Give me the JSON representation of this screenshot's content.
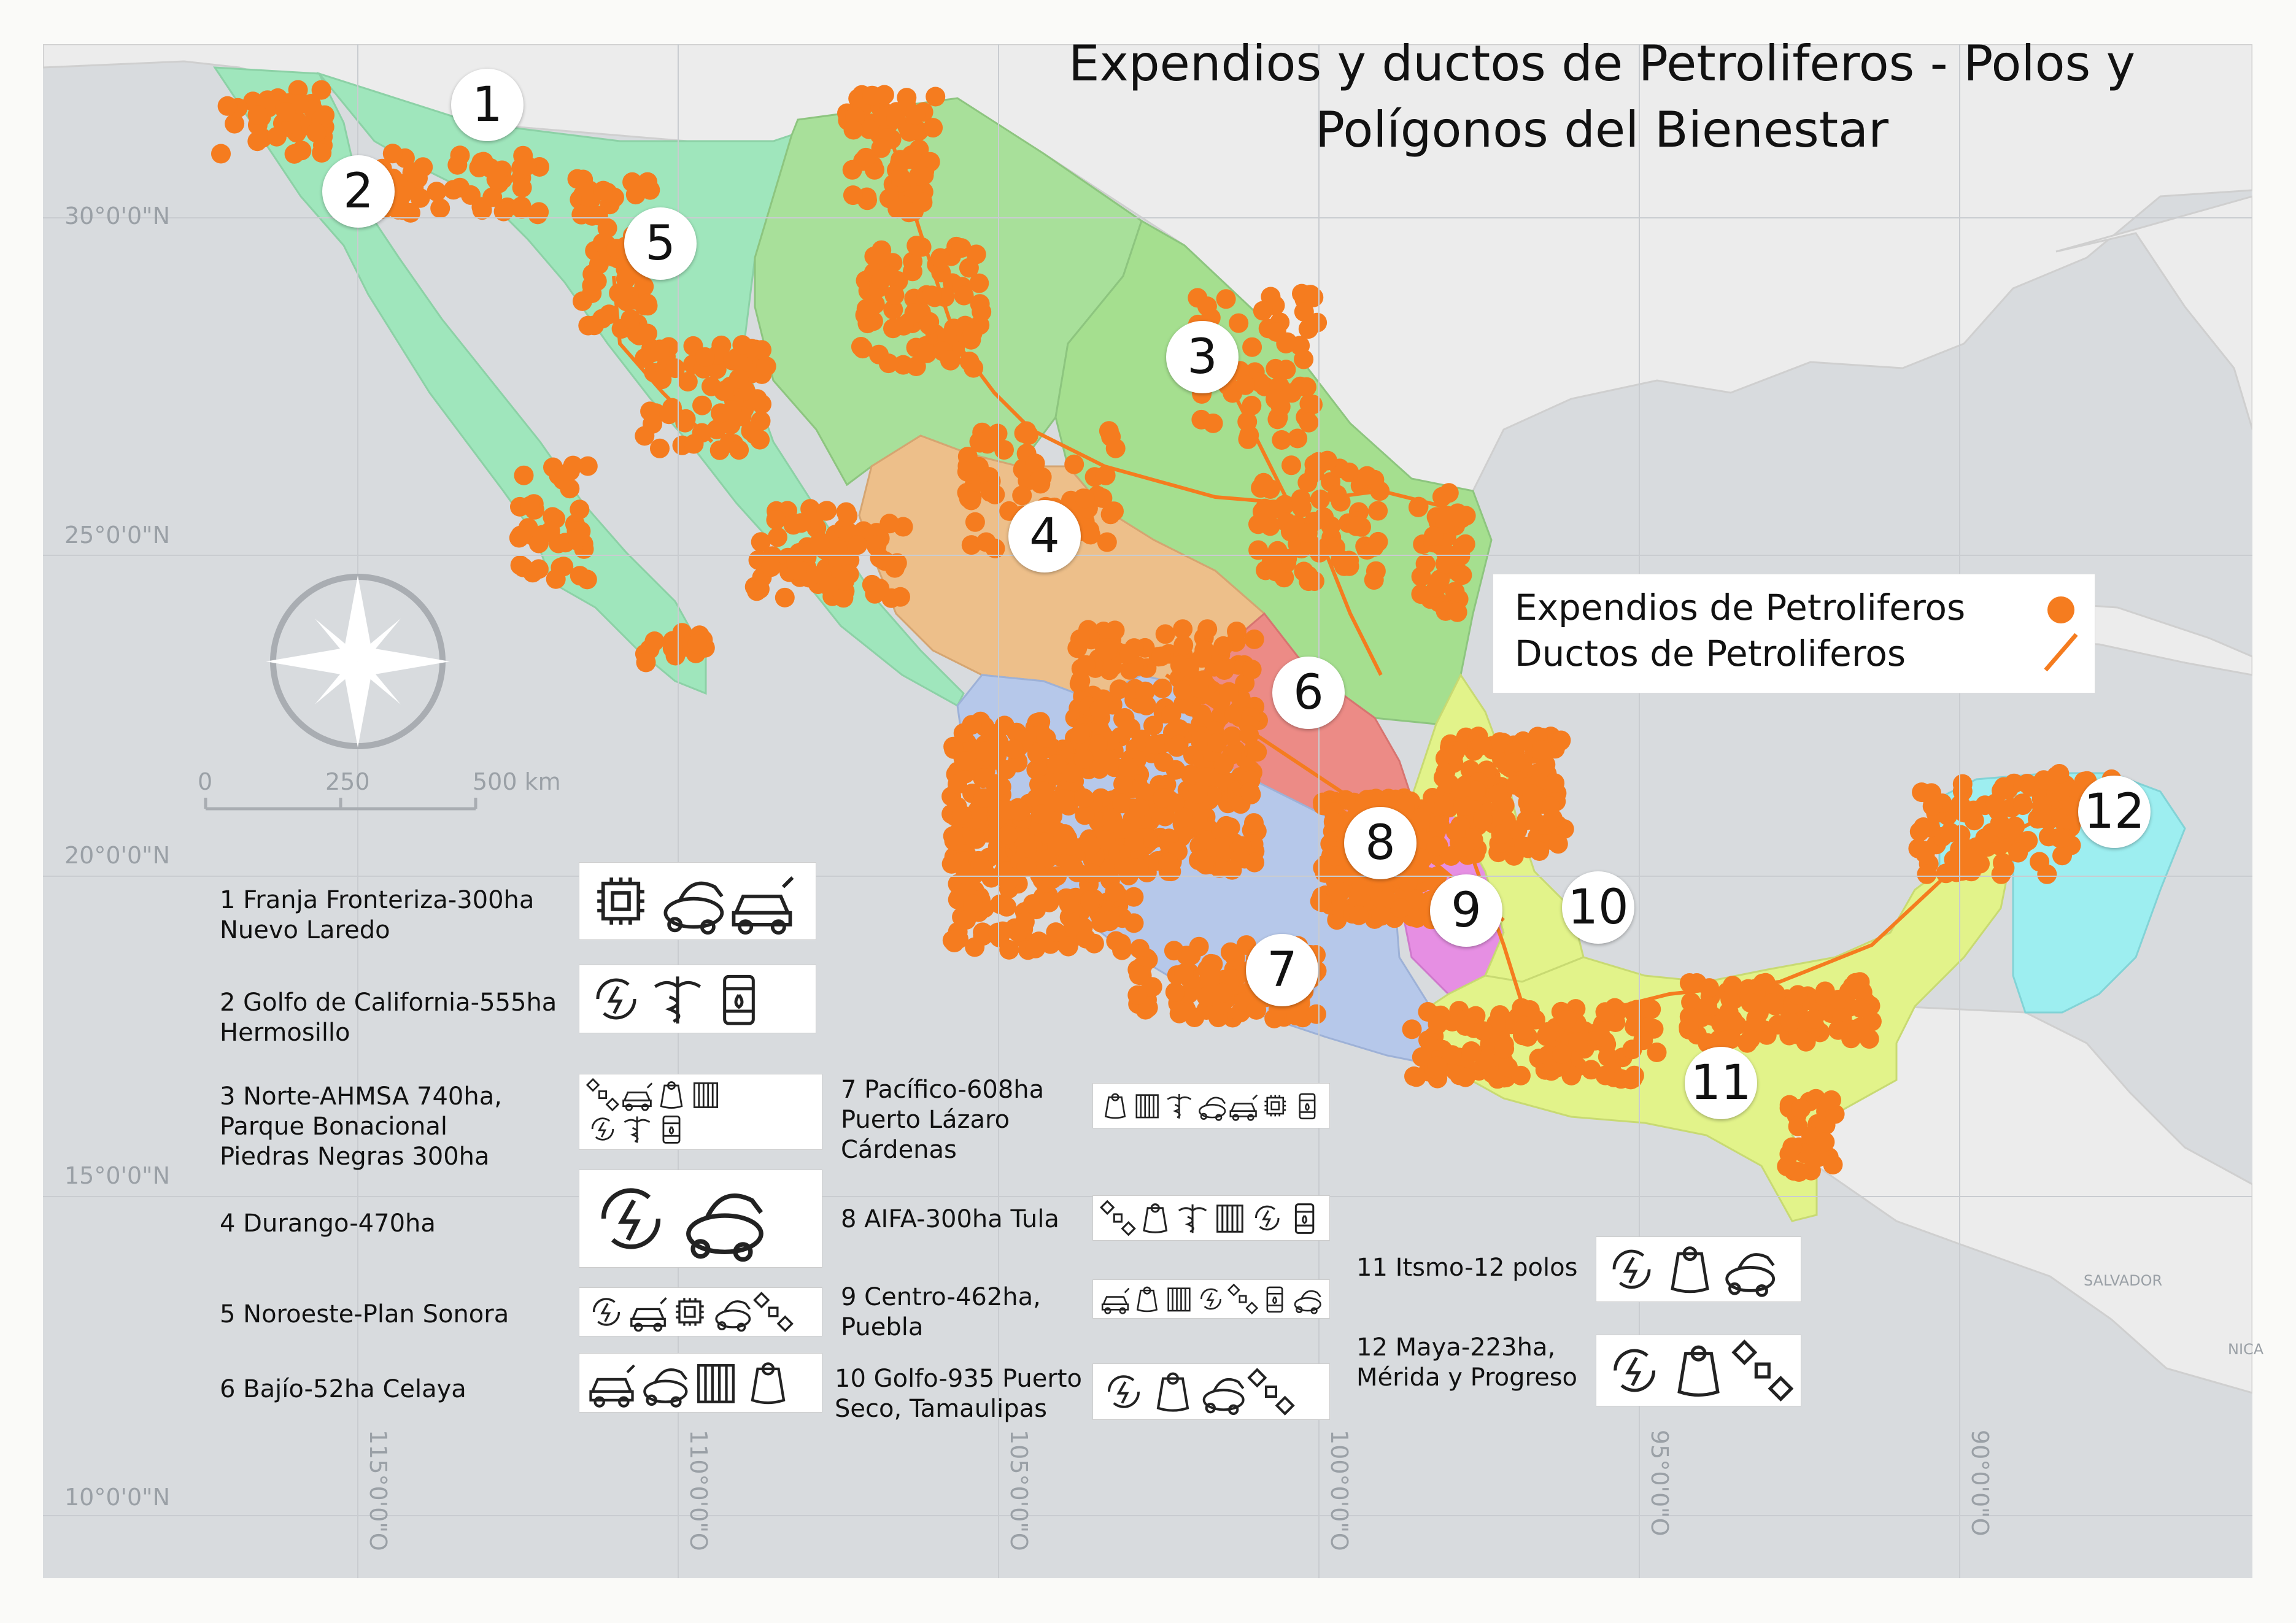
{
  "title": "Expendios y ductos de Petroliferos - Polos y Polígonos del Bienestar",
  "latitude_labels": [
    "30°0'0\"N",
    "25°0'0\"N",
    "20°0'0\"N",
    "15°0'0\"N",
    "10°0'0\"N"
  ],
  "longitude_labels": [
    "115°0'0\"O",
    "110°0'0\"O",
    "105°0'0\"O",
    "100°0'0\"O",
    "95°0'0\"O",
    "90°0'0\"O"
  ],
  "scale_bar": {
    "ticks": [
      "0",
      "250",
      "500 km"
    ]
  },
  "legend": {
    "items": [
      {
        "label": "Expendios de Petroliferos",
        "symbol": "circle",
        "color": "#f57c1f"
      },
      {
        "label": "Ductos de Petroliferos",
        "symbol": "line",
        "color": "#f57c1f"
      }
    ]
  },
  "region_numbers": [
    "1",
    "2",
    "3",
    "4",
    "5",
    "6",
    "7",
    "8",
    "9",
    "10",
    "11",
    "12"
  ],
  "region_colors": {
    "noroeste": "#9fe6bc",
    "norte": "#a8e09a",
    "noreste": "#a5df8f",
    "durango": "#edbf8a",
    "bajio": "#ec8b86",
    "pacifico": "#b6c8ea",
    "golfo": "#d2f07e",
    "maya": "#9deef0",
    "istmo": "#e2f38a",
    "centro_pink": "#e68fe3"
  },
  "polos": [
    {
      "text": "1 Franja Fronteriza-300ha\nNuevo Laredo",
      "icons": [
        "chip-icon",
        "vacuum-icon",
        "electric-car-icon"
      ]
    },
    {
      "text": "2 Golfo de California-555ha\nHermosillo",
      "icons": [
        "renewable-energy-icon",
        "caduceus-icon",
        "oil-barrel-icon"
      ]
    },
    {
      "text": "3 Norte-AHMSA 740ha,\nParque Bonacional\nPiedras Negras 300ha",
      "icons": [
        "satellite-icon",
        "electric-car-icon",
        "grain-sack-icon",
        "textile-icon",
        "renewable-energy-icon",
        "caduceus-icon",
        "oil-barrel-icon"
      ]
    },
    {
      "text": "4 Durango-470ha",
      "icons": [
        "renewable-energy-icon",
        "vacuum-icon"
      ]
    },
    {
      "text": "5 Noroeste-Plan Sonora",
      "icons": [
        "renewable-energy-icon",
        "electric-car-icon",
        "chip-icon",
        "vacuum-icon",
        "satellite-icon"
      ]
    },
    {
      "text": "6 Bajío-52ha Celaya",
      "icons": [
        "electric-car-icon",
        "vacuum-icon",
        "textile-icon",
        "grain-sack-icon"
      ]
    },
    {
      "text": "7 Pacífico-608ha\nPuerto Lázaro\nCárdenas",
      "icons": [
        "grain-sack-icon",
        "textile-icon",
        "caduceus-icon",
        "vacuum-icon",
        "electric-car-icon",
        "chip-icon",
        "oil-barrel-icon"
      ]
    },
    {
      "text": "8 AIFA-300ha Tula",
      "icons": [
        "satellite-icon",
        "grain-sack-icon",
        "caduceus-icon",
        "textile-icon",
        "renewable-energy-icon",
        "oil-barrel-icon"
      ]
    },
    {
      "text": "9 Centro-462ha,\nPuebla",
      "icons": [
        "electric-car-icon",
        "grain-sack-icon",
        "textile-icon",
        "renewable-energy-icon",
        "satellite-icon",
        "oil-barrel-icon",
        "vacuum-icon"
      ]
    },
    {
      "text": "10 Golfo-935 Puerto\nSeco, Tamaulipas",
      "icons": [
        "renewable-energy-icon",
        "grain-sack-icon",
        "vacuum-icon",
        "satellite-icon"
      ]
    },
    {
      "text": "11 Itsmo-12 polos",
      "icons": [
        "renewable-energy-icon",
        "grain-sack-icon",
        "vacuum-icon"
      ]
    },
    {
      "text": "12 Maya-223ha,\nMérida y Progreso",
      "icons": [
        "renewable-energy-icon",
        "grain-sack-icon",
        "satellite-icon"
      ]
    }
  ],
  "neighbor_labels": [
    "SALVADOR",
    "NICA"
  ]
}
